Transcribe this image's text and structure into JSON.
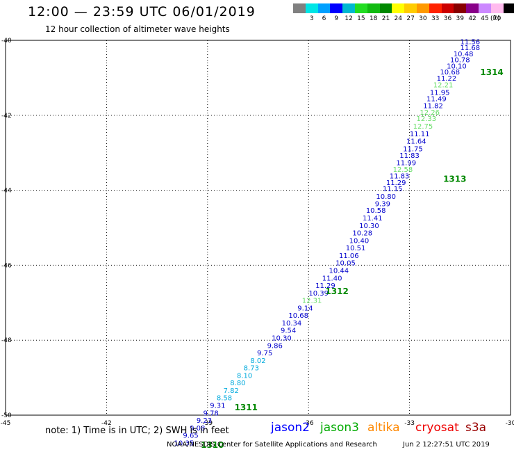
{
  "header": {
    "title": "12:00 — 23:59 UTC 06/01/2019",
    "subtitle": "12 hour collection of altimeter wave heights"
  },
  "scale": {
    "unit": "(ft)",
    "entries": [
      {
        "label": "",
        "color": "#808080"
      },
      {
        "label": "3",
        "color": "#00e5e5"
      },
      {
        "label": "6",
        "color": "#00a0ff"
      },
      {
        "label": "9",
        "color": "#0000ff"
      },
      {
        "label": "12",
        "color": "#00b8d0"
      },
      {
        "label": "15",
        "color": "#22dd22"
      },
      {
        "label": "18",
        "color": "#11bb11"
      },
      {
        "label": "21",
        "color": "#008800"
      },
      {
        "label": "24",
        "color": "#ffff00"
      },
      {
        "label": "27",
        "color": "#ffcc00"
      },
      {
        "label": "30",
        "color": "#ff9900"
      },
      {
        "label": "33",
        "color": "#ff2200"
      },
      {
        "label": "36",
        "color": "#cc0000"
      },
      {
        "label": "39",
        "color": "#880000"
      },
      {
        "label": "42",
        "color": "#880088"
      },
      {
        "label": "45",
        "color": "#cc88ff"
      },
      {
        "label": "70",
        "color": "#ffbbee"
      },
      {
        "label": "",
        "color": "#000000"
      }
    ]
  },
  "map": {
    "lon_ticks": [
      "-45",
      "-42",
      "-39",
      "-36",
      "-33",
      "-30"
    ],
    "lat_ticks": [
      "-40",
      "-42",
      "-44",
      "-46",
      "-48",
      "-50"
    ],
    "observations": [
      {
        "lon": -31.2,
        "lat": -40.05,
        "value": "11.56",
        "color": "#0000cc"
      },
      {
        "lon": -31.2,
        "lat": -40.2,
        "value": "11.68",
        "color": "#0000cc"
      },
      {
        "lon": -31.4,
        "lat": -40.37,
        "value": "10.48",
        "color": "#0000cc"
      },
      {
        "lon": -31.5,
        "lat": -40.53,
        "value": "10.78",
        "color": "#0000cc"
      },
      {
        "lon": -31.6,
        "lat": -40.7,
        "value": "10.10",
        "color": "#0000cc"
      },
      {
        "lon": -31.8,
        "lat": -40.85,
        "value": "10.68",
        "color": "#0000cc"
      },
      {
        "lon": -31.9,
        "lat": -41.02,
        "value": "11.22",
        "color": "#0000cc"
      },
      {
        "lon": -32.0,
        "lat": -41.2,
        "value": "12.21",
        "color": "#66dd66"
      },
      {
        "lon": -32.1,
        "lat": -41.4,
        "value": "11.95",
        "color": "#0000cc"
      },
      {
        "lon": -32.2,
        "lat": -41.57,
        "value": "11.49",
        "color": "#0000cc"
      },
      {
        "lon": -32.3,
        "lat": -41.75,
        "value": "11.82",
        "color": "#0000cc"
      },
      {
        "lon": -32.4,
        "lat": -41.93,
        "value": "12.26",
        "color": "#66dd66"
      },
      {
        "lon": -32.5,
        "lat": -42.1,
        "value": "12.33",
        "color": "#66dd66"
      },
      {
        "lon": -32.6,
        "lat": -42.3,
        "value": "12.75",
        "color": "#66dd66"
      },
      {
        "lon": -32.7,
        "lat": -42.5,
        "value": "11.11",
        "color": "#0000cc"
      },
      {
        "lon": -32.8,
        "lat": -42.7,
        "value": "11.64",
        "color": "#0000cc"
      },
      {
        "lon": -32.9,
        "lat": -42.9,
        "value": "11.75",
        "color": "#0000cc"
      },
      {
        "lon": -33.0,
        "lat": -43.08,
        "value": "11.83",
        "color": "#0000cc"
      },
      {
        "lon": -33.1,
        "lat": -43.27,
        "value": "11.99",
        "color": "#0000cc"
      },
      {
        "lon": -33.2,
        "lat": -43.45,
        "value": "12.58",
        "color": "#66dd66"
      },
      {
        "lon": -33.3,
        "lat": -43.63,
        "value": "11.83",
        "color": "#0000cc"
      },
      {
        "lon": -33.4,
        "lat": -43.8,
        "value": "11.29",
        "color": "#0000cc"
      },
      {
        "lon": -33.5,
        "lat": -43.97,
        "value": "11.15",
        "color": "#0000cc"
      },
      {
        "lon": -33.7,
        "lat": -44.17,
        "value": "10.80",
        "color": "#0000cc"
      },
      {
        "lon": -33.8,
        "lat": -44.37,
        "value": "9.39",
        "color": "#0000cc"
      },
      {
        "lon": -34.0,
        "lat": -44.55,
        "value": "10.58",
        "color": "#0000cc"
      },
      {
        "lon": -34.1,
        "lat": -44.75,
        "value": "11.41",
        "color": "#0000cc"
      },
      {
        "lon": -34.2,
        "lat": -44.95,
        "value": "10.30",
        "color": "#0000cc"
      },
      {
        "lon": -34.4,
        "lat": -45.15,
        "value": "10.28",
        "color": "#0000cc"
      },
      {
        "lon": -34.5,
        "lat": -45.35,
        "value": "10.40",
        "color": "#0000cc"
      },
      {
        "lon": -34.6,
        "lat": -45.55,
        "value": "10.51",
        "color": "#0000cc"
      },
      {
        "lon": -34.8,
        "lat": -45.75,
        "value": "11.06",
        "color": "#0000cc"
      },
      {
        "lon": -34.9,
        "lat": -45.95,
        "value": "10.05",
        "color": "#0000cc"
      },
      {
        "lon": -35.1,
        "lat": -46.15,
        "value": "10.44",
        "color": "#0000cc"
      },
      {
        "lon": -35.3,
        "lat": -46.35,
        "value": "11.40",
        "color": "#0000cc"
      },
      {
        "lon": -35.5,
        "lat": -46.55,
        "value": "11.29",
        "color": "#0000cc"
      },
      {
        "lon": -35.7,
        "lat": -46.75,
        "value": "10.39",
        "color": "#0000cc"
      },
      {
        "lon": -35.9,
        "lat": -46.95,
        "value": "12.31",
        "color": "#66dd66"
      },
      {
        "lon": -36.1,
        "lat": -47.15,
        "value": "9.14",
        "color": "#0000cc"
      },
      {
        "lon": -36.3,
        "lat": -47.35,
        "value": "10.68",
        "color": "#0000cc"
      },
      {
        "lon": -36.5,
        "lat": -47.55,
        "value": "10.34",
        "color": "#0000cc"
      },
      {
        "lon": -36.6,
        "lat": -47.75,
        "value": "9.54",
        "color": "#0000cc"
      },
      {
        "lon": -36.8,
        "lat": -47.95,
        "value": "10.30",
        "color": "#0000cc"
      },
      {
        "lon": -37.0,
        "lat": -48.15,
        "value": "9.86",
        "color": "#0000cc"
      },
      {
        "lon": -37.3,
        "lat": -48.35,
        "value": "9.75",
        "color": "#0000cc"
      },
      {
        "lon": -37.5,
        "lat": -48.55,
        "value": "8.02",
        "color": "#00aadd"
      },
      {
        "lon": -37.7,
        "lat": -48.75,
        "value": "8.73",
        "color": "#00aadd"
      },
      {
        "lon": -37.9,
        "lat": -48.95,
        "value": "8.10",
        "color": "#00aadd"
      },
      {
        "lon": -38.1,
        "lat": -49.15,
        "value": "8.80",
        "color": "#00aadd"
      },
      {
        "lon": -38.3,
        "lat": -49.35,
        "value": "7.82",
        "color": "#00aadd"
      },
      {
        "lon": -38.5,
        "lat": -49.55,
        "value": "8.58",
        "color": "#00aadd"
      },
      {
        "lon": -38.7,
        "lat": -49.75,
        "value": "9.31",
        "color": "#0000cc"
      },
      {
        "lon": -38.9,
        "lat": -49.95,
        "value": "9.78",
        "color": "#0000cc"
      },
      {
        "lon": -39.1,
        "lat": -50.15,
        "value": "9.23",
        "color": "#0000cc"
      },
      {
        "lon": -39.3,
        "lat": -50.35,
        "value": "9.08",
        "color": "#0000cc"
      },
      {
        "lon": -39.5,
        "lat": -50.55,
        "value": "9.65",
        "color": "#0000cc"
      },
      {
        "lon": -39.7,
        "lat": -50.75,
        "value": "10.35",
        "color": "#0000cc"
      }
    ],
    "time_labels": [
      {
        "lon": -30.9,
        "lat": -40.85,
        "value": "1314",
        "color": "#008800"
      },
      {
        "lon": -32.0,
        "lat": -43.7,
        "value": "1313",
        "color": "#008800"
      },
      {
        "lon": -35.5,
        "lat": -46.7,
        "value": "1312",
        "color": "#008800"
      },
      {
        "lon": -38.2,
        "lat": -49.8,
        "value": "1311",
        "color": "#008800"
      },
      {
        "lon": -39.2,
        "lat": -50.8,
        "value": "1310",
        "color": "#008800"
      }
    ]
  },
  "footer": {
    "note": "note: 1) Time is in UTC; 2) SWH is in feet",
    "legend": [
      {
        "label": "jason2",
        "color": "#0000ff"
      },
      {
        "label": "jason3",
        "color": "#00aa00"
      },
      {
        "label": "altika",
        "color": "#ff8800"
      },
      {
        "label": "cryosat",
        "color": "#ee0000"
      },
      {
        "label": "s3a",
        "color": "#990000"
      }
    ],
    "credit": "NOAA/NESDIS Center for Satellite Applications and Research",
    "timestamp": "Jun  2 12:27:51 UTC 2019"
  }
}
